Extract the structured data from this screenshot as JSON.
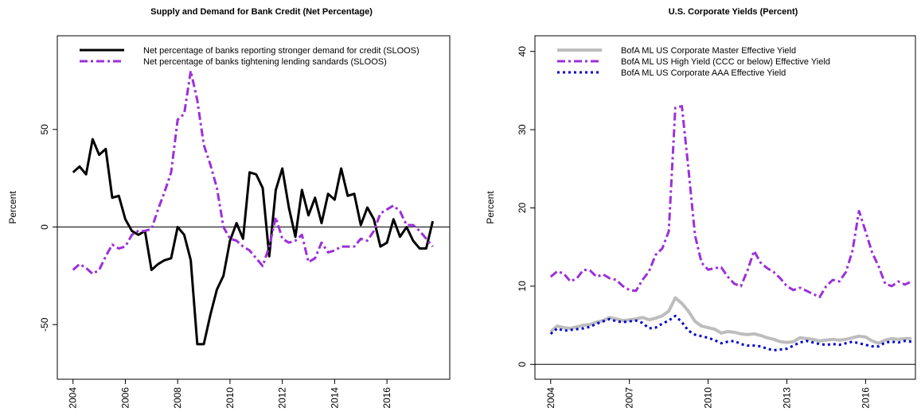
{
  "chart_data": [
    {
      "type": "line",
      "title": "Supply and Demand for Bank Credit (Net Percentage)",
      "y_label": "Percent",
      "x": [
        2004,
        2004.25,
        2004.5,
        2004.75,
        2005,
        2005.25,
        2005.5,
        2005.75,
        2006,
        2006.25,
        2006.5,
        2006.75,
        2007,
        2007.25,
        2007.5,
        2007.75,
        2008,
        2008.25,
        2008.5,
        2008.75,
        2009,
        2009.25,
        2009.5,
        2009.75,
        2010,
        2010.25,
        2010.5,
        2010.75,
        2011,
        2011.25,
        2011.5,
        2011.75,
        2012,
        2012.25,
        2012.5,
        2012.75,
        2013,
        2013.25,
        2013.5,
        2013.75,
        2014,
        2014.25,
        2014.5,
        2014.75,
        2015,
        2015.25,
        2015.5,
        2015.75,
        2016,
        2016.25,
        2016.5,
        2016.75,
        2017,
        2017.25,
        2017.5,
        2017.75
      ],
      "xlim": [
        2003.4,
        2018.4
      ],
      "xticks": [
        2004,
        2006,
        2008,
        2010,
        2012,
        2014,
        2016
      ],
      "ylim": [
        -78,
        98
      ],
      "yticks": [
        -50,
        0,
        50
      ],
      "legend": "top-left",
      "series": [
        {
          "name": "Net percentage of banks reporting stronger demand for credit (SLOOS)",
          "color": "#000000",
          "dash": "solid",
          "width": 3,
          "values": [
            28,
            31,
            27,
            45,
            37,
            40,
            15,
            16,
            4,
            -2,
            -4,
            -2,
            -22,
            -19,
            -17,
            -16,
            0,
            -4,
            -17,
            -60,
            -60,
            -45,
            -32,
            -25,
            -7,
            2,
            -6,
            28,
            27,
            20,
            -15,
            19,
            30,
            10,
            -5,
            19,
            6,
            15,
            2,
            17,
            14,
            30,
            16,
            17,
            1,
            10,
            4,
            -10,
            -8,
            4,
            -5,
            0,
            -7,
            -11,
            -11,
            3
          ]
        },
        {
          "name": "Net percentage of banks tightening lending sandards (SLOOS)",
          "color": "#9b30d9",
          "dash": "dashdot",
          "width": 3,
          "values": [
            -22,
            -19,
            -21,
            -24,
            -22,
            -15,
            -9,
            -11,
            -10,
            -4,
            -2,
            -2,
            -1,
            9,
            18,
            28,
            55,
            58,
            80,
            65,
            42,
            32,
            20,
            0,
            -6,
            -7,
            -10,
            -12,
            -16,
            -20,
            -10,
            5,
            -6,
            -8,
            -7,
            -4,
            -18,
            -16,
            -8,
            -13,
            -12,
            -10,
            -10,
            -10,
            -6,
            -7,
            -2,
            7,
            9,
            11,
            8,
            1,
            1,
            -2,
            -6,
            -10
          ]
        }
      ]
    },
    {
      "type": "line",
      "title": "U.S. Corporate Yields (Percent)",
      "y_label": "Percent",
      "x": [
        2004,
        2004.25,
        2004.5,
        2004.75,
        2005,
        2005.25,
        2005.5,
        2005.75,
        2006,
        2006.25,
        2006.5,
        2006.75,
        2007,
        2007.25,
        2007.5,
        2007.75,
        2008,
        2008.25,
        2008.5,
        2008.75,
        2009,
        2009.25,
        2009.5,
        2009.75,
        2010,
        2010.25,
        2010.5,
        2010.75,
        2011,
        2011.25,
        2011.5,
        2011.75,
        2012,
        2012.25,
        2012.5,
        2012.75,
        2013,
        2013.25,
        2013.5,
        2013.75,
        2014,
        2014.25,
        2014.5,
        2014.75,
        2015,
        2015.25,
        2015.5,
        2015.75,
        2016,
        2016.25,
        2016.5,
        2016.75,
        2017,
        2017.25,
        2017.5,
        2017.75
      ],
      "xlim": [
        2003.4,
        2017.9
      ],
      "xticks": [
        2004,
        2007,
        2010,
        2013,
        2016
      ],
      "ylim": [
        -1.9,
        42
      ],
      "yticks": [
        0,
        10,
        20,
        30,
        40
      ],
      "legend": "top-left",
      "series": [
        {
          "name": "BofA ML US Corporate Master Effective Yield",
          "color": "#bdbdbd",
          "dash": "solid",
          "width": 4,
          "values": [
            4.2,
            4.9,
            4.7,
            4.6,
            4.8,
            5.0,
            5.1,
            5.4,
            5.6,
            6.0,
            5.8,
            5.6,
            5.7,
            5.8,
            6.0,
            5.7,
            5.9,
            6.2,
            6.8,
            8.5,
            7.8,
            6.8,
            5.5,
            4.9,
            4.7,
            4.5,
            4.0,
            4.2,
            4.1,
            3.9,
            3.8,
            3.9,
            3.7,
            3.4,
            3.2,
            2.9,
            2.8,
            2.9,
            3.4,
            3.3,
            3.2,
            3.0,
            3.1,
            3.2,
            3.1,
            3.2,
            3.4,
            3.6,
            3.5,
            3.0,
            2.7,
            3.1,
            3.3,
            3.2,
            3.3,
            3.3
          ]
        },
        {
          "name": "BofA ML US High Yield (CCC or below)  Effective Yield",
          "color": "#9b30d9",
          "dash": "dashdot",
          "width": 3,
          "values": [
            11.2,
            11.9,
            11.6,
            10.6,
            11.0,
            12.1,
            12.0,
            11.2,
            11.5,
            11.0,
            10.8,
            10.0,
            9.5,
            9.4,
            10.8,
            11.9,
            14.0,
            14.8,
            17.0,
            32.8,
            33.0,
            25.0,
            16.5,
            13.0,
            12.1,
            12.3,
            12.4,
            11.2,
            10.3,
            10.0,
            12.0,
            14.5,
            13.0,
            12.3,
            11.8,
            11.0,
            10.0,
            9.5,
            9.8,
            9.4,
            9.0,
            8.6,
            10.0,
            10.8,
            10.6,
            11.8,
            14.5,
            19.6,
            17.0,
            14.3,
            12.5,
            10.3,
            10.0,
            10.6,
            10.2,
            10.6
          ]
        },
        {
          "name": "BofA ML US Corporate AAA Effective Yield",
          "color": "#0000cc",
          "dash": "dotted",
          "width": 3,
          "values": [
            3.9,
            4.6,
            4.3,
            4.4,
            4.5,
            4.6,
            4.8,
            5.2,
            5.5,
            5.8,
            5.5,
            5.4,
            5.5,
            5.6,
            5.3,
            4.6,
            4.7,
            5.2,
            5.6,
            6.2,
            5.4,
            4.3,
            3.8,
            3.6,
            3.4,
            3.1,
            2.7,
            2.9,
            3.0,
            2.6,
            2.4,
            2.4,
            2.3,
            2.0,
            1.8,
            1.9,
            2.0,
            2.4,
            2.8,
            3.0,
            2.8,
            2.6,
            2.5,
            2.6,
            2.5,
            2.7,
            2.9,
            2.7,
            2.5,
            2.3,
            2.3,
            2.8,
            2.9,
            2.8,
            3.0,
            2.9
          ]
        }
      ]
    }
  ]
}
